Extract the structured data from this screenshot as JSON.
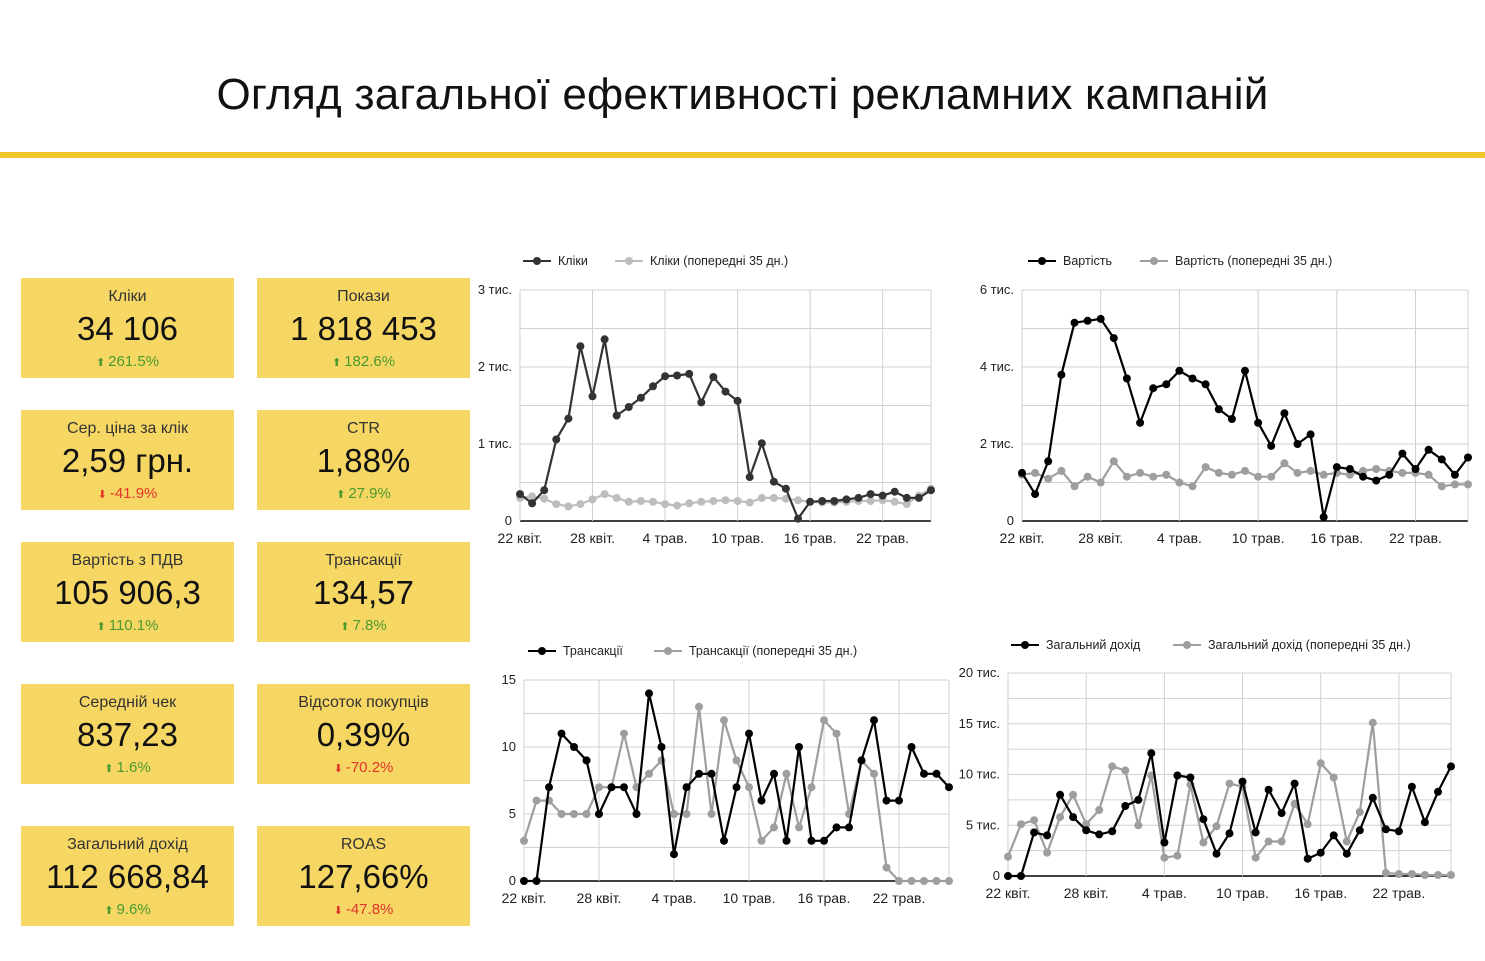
{
  "title": "Огляд загальної ефективності рекламних кампаній",
  "colors": {
    "accent": "#f0c52a",
    "card_bg": "#f7d764",
    "up": "#4a9a2e",
    "down": "#e0342b",
    "primary_line": "#000000",
    "compare_line": "#9e9e9e",
    "grid": "#d0d0d0"
  },
  "cards": [
    {
      "label": "Кліки",
      "value": "34 106",
      "change": "261.5%",
      "direction": "up"
    },
    {
      "label": "Покази",
      "value": "1 818 453",
      "change": "182.6%",
      "direction": "up"
    },
    {
      "label": "Сер. ціна за клік",
      "value": "2,59 грн.",
      "change": "-41.9%",
      "direction": "down"
    },
    {
      "label": "CTR",
      "value": "1,88%",
      "change": "27.9%",
      "direction": "up"
    },
    {
      "label": "Вартість з ПДВ",
      "value": "105 906,3",
      "change": "110.1%",
      "direction": "up"
    },
    {
      "label": "Трансакції",
      "value": "134,57",
      "change": "7.8%",
      "direction": "up"
    },
    {
      "label": "Середній чек",
      "value": "837,23",
      "change": "1.6%",
      "direction": "up"
    },
    {
      "label": "Відсоток покупців",
      "value": "0,39%",
      "change": "-70.2%",
      "direction": "down"
    },
    {
      "label": "Загальний дохід",
      "value": "112 668,84",
      "change": "9.6%",
      "direction": "up"
    },
    {
      "label": "ROAS",
      "value": "127,66%",
      "change": "-47.8%",
      "direction": "down"
    }
  ],
  "chart_data": [
    {
      "type": "line",
      "x_ticks": [
        "22 квіт.",
        "28 квіт.",
        "4 трав.",
        "10 трав.",
        "16 трав.",
        "22 трав."
      ],
      "y_ticks": [
        "0",
        "1 тис.",
        "2 тис.",
        "3 тис."
      ],
      "ylim": [
        0,
        3000
      ],
      "legend_position": "top-left",
      "series": [
        {
          "name": "Кліки",
          "color": "#333333",
          "values": [
            350,
            230,
            400,
            1060,
            1330,
            2270,
            1620,
            2360,
            1370,
            1480,
            1600,
            1750,
            1880,
            1890,
            1910,
            1540,
            1870,
            1680,
            1560,
            570,
            1010,
            510,
            420,
            30,
            250,
            260,
            260,
            280,
            300,
            350,
            330,
            380,
            300,
            300,
            400
          ]
        },
        {
          "name": "Кліки (попередні 35 дн.)",
          "color": "#bdbdbd",
          "values": [
            300,
            320,
            290,
            220,
            190,
            220,
            280,
            350,
            300,
            250,
            260,
            250,
            220,
            200,
            230,
            250,
            260,
            270,
            260,
            240,
            300,
            300,
            290,
            270,
            250,
            240,
            240,
            250,
            260,
            260,
            270,
            250,
            220,
            330,
            420
          ]
        }
      ]
    },
    {
      "type": "line",
      "x_ticks": [
        "22 квіт.",
        "28 квіт.",
        "4 трав.",
        "10 трав.",
        "16 трав.",
        "22 трав."
      ],
      "y_ticks": [
        "0",
        "2 тис.",
        "4 тис.",
        "6 тис."
      ],
      "ylim": [
        0,
        6000
      ],
      "legend_position": "top-left",
      "series": [
        {
          "name": "Вартість",
          "color": "#000000",
          "values": [
            1250,
            700,
            1550,
            3800,
            5150,
            5200,
            5250,
            4750,
            3700,
            2550,
            3450,
            3550,
            3900,
            3700,
            3550,
            2900,
            2650,
            3900,
            2550,
            1950,
            2800,
            2000,
            2250,
            100,
            1400,
            1350,
            1150,
            1050,
            1200,
            1750,
            1350,
            1850,
            1600,
            1200,
            1650
          ]
        },
        {
          "name": "Вартість (попередні 35 дн.)",
          "color": "#9e9e9e",
          "values": [
            1200,
            1250,
            1100,
            1300,
            900,
            1150,
            1000,
            1550,
            1150,
            1250,
            1150,
            1200,
            1000,
            900,
            1400,
            1250,
            1200,
            1300,
            1150,
            1150,
            1500,
            1250,
            1300,
            1200,
            1250,
            1200,
            1300,
            1350,
            1300,
            1250,
            1250,
            1200,
            900,
            950,
            950
          ]
        }
      ]
    },
    {
      "type": "line",
      "x_ticks": [
        "22 квіт.",
        "28 квіт.",
        "4 трав.",
        "10 трав.",
        "16 трав.",
        "22 трав."
      ],
      "y_ticks": [
        "0",
        "5",
        "10",
        "15"
      ],
      "ylim": [
        0,
        15
      ],
      "legend_position": "top-left",
      "series": [
        {
          "name": "Трансакції",
          "color": "#000000",
          "values": [
            0,
            0,
            7,
            11,
            10,
            9,
            5,
            7,
            7,
            5,
            14,
            10,
            2,
            7,
            8,
            8,
            3,
            7,
            11,
            6,
            8,
            3,
            10,
            3,
            3,
            4,
            4,
            9,
            12,
            6,
            6,
            10,
            8,
            8,
            7
          ]
        },
        {
          "name": "Трансакції (попередні 35 дн.)",
          "color": "#9e9e9e",
          "values": [
            3,
            6,
            6,
            5,
            5,
            5,
            7,
            7,
            11,
            7,
            8,
            9,
            5,
            5,
            13,
            5,
            12,
            9,
            7,
            3,
            4,
            8,
            4,
            7,
            12,
            11,
            5,
            9,
            8,
            1,
            0,
            0,
            0,
            0,
            0
          ]
        }
      ]
    },
    {
      "type": "line",
      "x_ticks": [
        "22 квіт.",
        "28 квіт.",
        "4 трав.",
        "10 трав.",
        "16 трав.",
        "22 трав."
      ],
      "y_ticks": [
        "0",
        "5 тис.",
        "10 тис.",
        "15 тис.",
        "20 тис."
      ],
      "ylim": [
        0,
        20000
      ],
      "legend_position": "top-left",
      "series": [
        {
          "name": "Загальний дохід",
          "color": "#000000",
          "values": [
            0,
            0,
            4300,
            4000,
            8000,
            5800,
            4500,
            4100,
            4400,
            6900,
            7500,
            12100,
            3300,
            9900,
            9700,
            5600,
            2200,
            4200,
            9300,
            4300,
            8500,
            6200,
            9100,
            1700,
            2300,
            4000,
            2200,
            4500,
            7700,
            4600,
            4400,
            8800,
            5300,
            8300,
            10800
          ]
        },
        {
          "name": "Загальний дохід (попередні 35 дн.)",
          "color": "#9e9e9e",
          "values": [
            1900,
            5100,
            5500,
            2300,
            5800,
            8000,
            5100,
            6500,
            10800,
            10400,
            5000,
            9900,
            1800,
            2000,
            9000,
            3300,
            4900,
            9100,
            8800,
            1800,
            3400,
            3400,
            7100,
            5100,
            11100,
            9700,
            3400,
            6300,
            15100,
            300,
            200,
            200,
            100,
            100,
            100
          ]
        }
      ]
    }
  ]
}
